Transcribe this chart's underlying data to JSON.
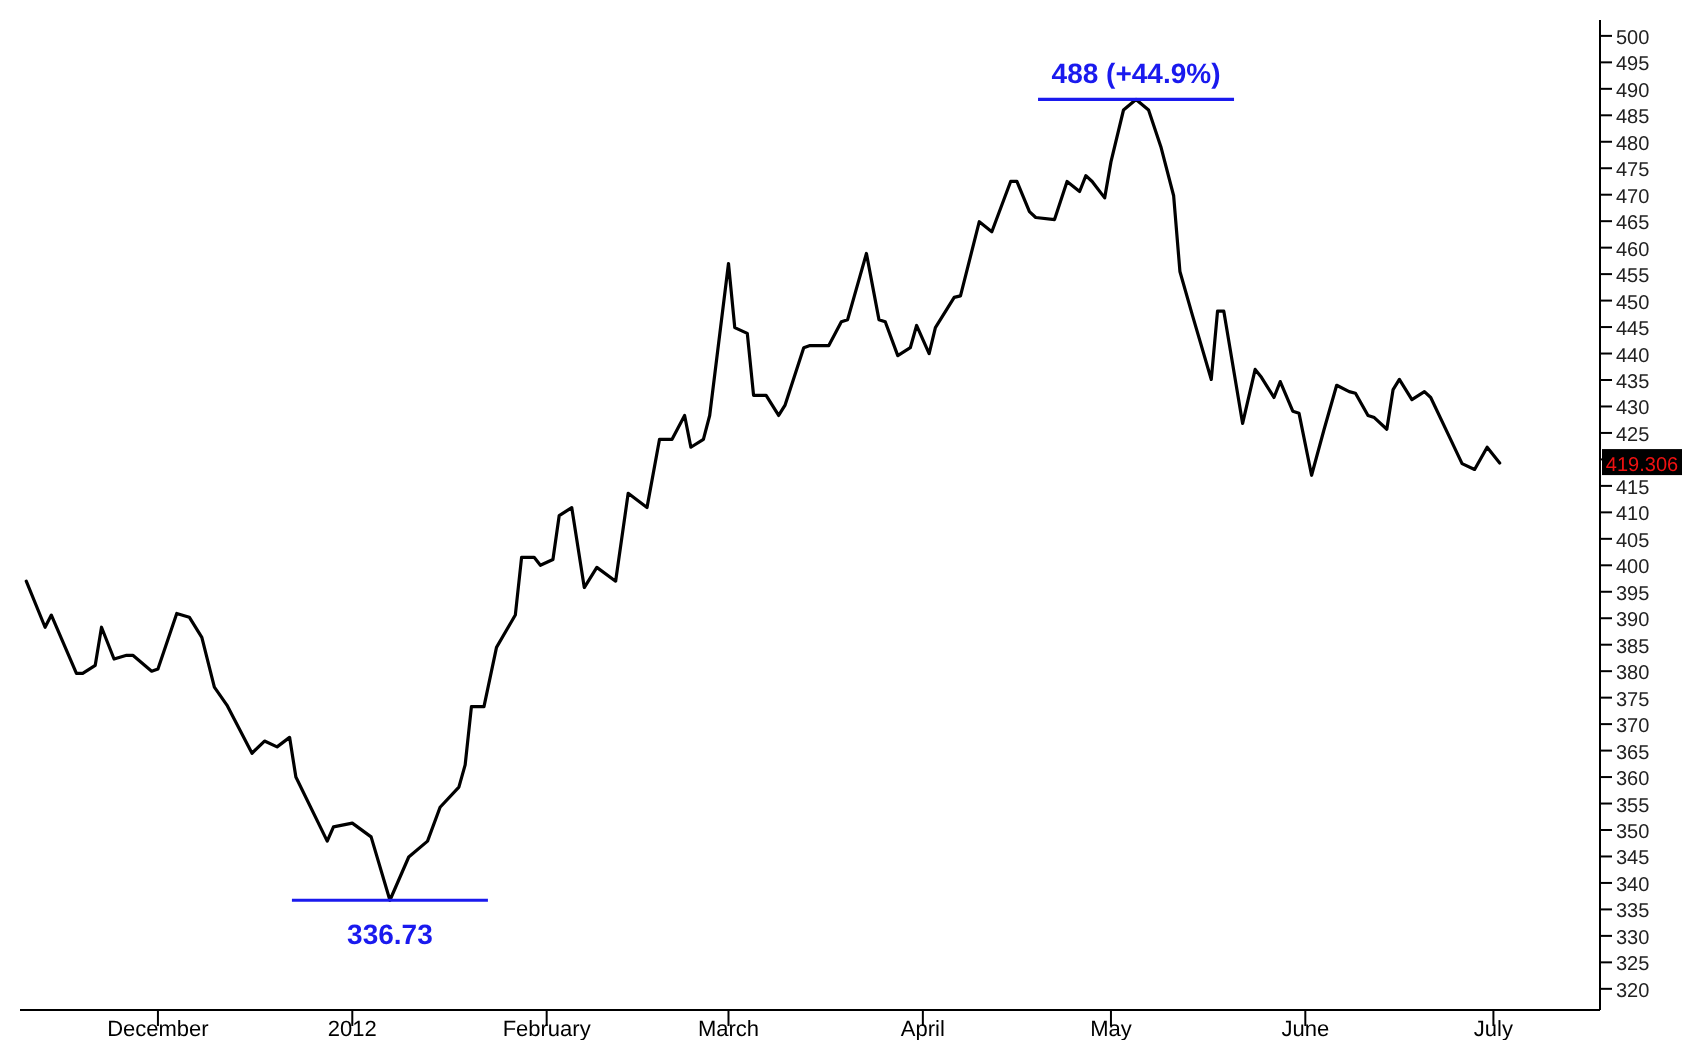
{
  "chart_data": {
    "type": "line",
    "x": [
      "2011-11-10",
      "2011-11-13",
      "2011-11-14",
      "2011-11-18",
      "2011-11-19",
      "2011-11-21",
      "2011-11-22",
      "2011-11-24",
      "2011-11-26",
      "2011-11-27",
      "2011-11-30",
      "2011-12-01",
      "2011-12-04",
      "2011-12-06",
      "2011-12-08",
      "2011-12-10",
      "2011-12-12",
      "2011-12-16",
      "2011-12-18",
      "2011-12-20",
      "2011-12-22",
      "2011-12-23",
      "2011-12-28",
      "2011-12-29",
      "2012-01-01",
      "2012-01-04",
      "2012-01-07",
      "2012-01-10",
      "2012-01-13",
      "2012-01-15",
      "2012-01-18",
      "2012-01-19",
      "2012-01-20",
      "2012-01-22",
      "2012-01-24",
      "2012-01-27",
      "2012-01-28",
      "2012-01-30",
      "2012-01-31",
      "2012-02-02",
      "2012-02-03",
      "2012-02-05",
      "2012-02-07",
      "2012-02-09",
      "2012-02-12",
      "2012-02-14",
      "2012-02-17",
      "2012-02-19",
      "2012-02-21",
      "2012-02-23",
      "2012-02-24",
      "2012-02-26",
      "2012-02-27",
      "2012-03-01",
      "2012-03-02",
      "2012-03-04",
      "2012-03-05",
      "2012-03-07",
      "2012-03-09",
      "2012-03-10",
      "2012-03-13",
      "2012-03-14",
      "2012-03-17",
      "2012-03-19",
      "2012-03-20",
      "2012-03-23",
      "2012-03-25",
      "2012-03-26",
      "2012-03-28",
      "2012-03-30",
      "2012-03-31",
      "2012-04-02",
      "2012-04-03",
      "2012-04-06",
      "2012-04-07",
      "2012-04-10",
      "2012-04-12",
      "2012-04-15",
      "2012-04-16",
      "2012-04-18",
      "2012-04-19",
      "2012-04-22",
      "2012-04-24",
      "2012-04-26",
      "2012-04-27",
      "2012-04-28",
      "2012-04-30",
      "2012-05-01",
      "2012-05-03",
      "2012-05-05",
      "2012-05-07",
      "2012-05-09",
      "2012-05-11",
      "2012-05-12",
      "2012-05-14",
      "2012-05-17",
      "2012-05-18",
      "2012-05-19",
      "2012-05-22",
      "2012-05-24",
      "2012-05-25",
      "2012-05-27",
      "2012-05-28",
      "2012-05-30",
      "2012-05-31",
      "2012-06-02",
      "2012-06-04",
      "2012-06-06",
      "2012-06-08",
      "2012-06-09",
      "2012-06-11",
      "2012-06-12",
      "2012-06-14",
      "2012-06-15",
      "2012-06-16",
      "2012-06-18",
      "2012-06-20",
      "2012-06-21",
      "2012-06-24",
      "2012-06-26",
      "2012-06-28",
      "2012-06-30",
      "2012-07-02"
    ],
    "series": [
      {
        "color": "#000000",
        "values": [
          397,
          388.3,
          390.6,
          379.6,
          379.6,
          381.1,
          388.3,
          382.3,
          383,
          383,
          380,
          380.4,
          390.9,
          390.2,
          386.4,
          377,
          373.6,
          364.5,
          366.8,
          365.7,
          367.5,
          360,
          347.9,
          350.6,
          351.3,
          348.7,
          336.73,
          344.9,
          347.9,
          354.3,
          358.1,
          362.3,
          373.3,
          373.3,
          384.5,
          390.6,
          401.5,
          401.5,
          400,
          401.1,
          409.4,
          410.9,
          395.8,
          399.6,
          397,
          413.6,
          410.9,
          423.8,
          423.8,
          428.3,
          422.3,
          423.8,
          428.3,
          457,
          444.9,
          443.8,
          432.1,
          432.1,
          428.3,
          430.2,
          441.1,
          441.5,
          441.5,
          446,
          446.4,
          458.9,
          446.4,
          446,
          439.6,
          441.1,
          445.3,
          440,
          444.9,
          450.6,
          450.9,
          464.9,
          463,
          472.5,
          472.5,
          466.8,
          465.7,
          465.3,
          472.5,
          470.6,
          473.6,
          472.5,
          469.4,
          476.2,
          486,
          488,
          486,
          478.9,
          469.8,
          455.5,
          447.2,
          435.1,
          448,
          448,
          426.8,
          437,
          435.5,
          431.7,
          434.7,
          429.1,
          428.7,
          417,
          425.7,
          434,
          432.8,
          432.5,
          428.3,
          427.9,
          425.7,
          433.2,
          435.1,
          431.3,
          432.8,
          431.7,
          424.2,
          419.2,
          418.1,
          422.3,
          419.306
        ]
      }
    ],
    "xlim": [
      "2011-11-09",
      "2012-07-18"
    ],
    "xticks": [
      {
        "value": "2011-12-01",
        "label": "December"
      },
      {
        "value": "2012-01-01",
        "label": "2012"
      },
      {
        "value": "2012-02-01",
        "label": "February"
      },
      {
        "value": "2012-03-01",
        "label": "March"
      },
      {
        "value": "2012-04-01",
        "label": "April"
      },
      {
        "value": "2012-05-01",
        "label": "May"
      },
      {
        "value": "2012-06-01",
        "label": "June"
      },
      {
        "value": "2012-07-01",
        "label": "July"
      }
    ],
    "ylim": [
      316,
      503
    ],
    "yticks": [
      320,
      325,
      330,
      335,
      340,
      345,
      350,
      355,
      360,
      365,
      370,
      375,
      380,
      385,
      390,
      395,
      400,
      405,
      410,
      415,
      {
        "value": 420,
        "label": null
      },
      425,
      430,
      435,
      440,
      445,
      450,
      455,
      460,
      465,
      470,
      475,
      480,
      485,
      490,
      495,
      500
    ],
    "annotations": [
      {
        "text": "336.73",
        "x": "2012-01-07",
        "y": 336.73
      },
      {
        "text": "488 (+44.9%)",
        "x": "2012-05-05",
        "y": 488
      },
      "419.306"
    ],
    "grid": false
  }
}
